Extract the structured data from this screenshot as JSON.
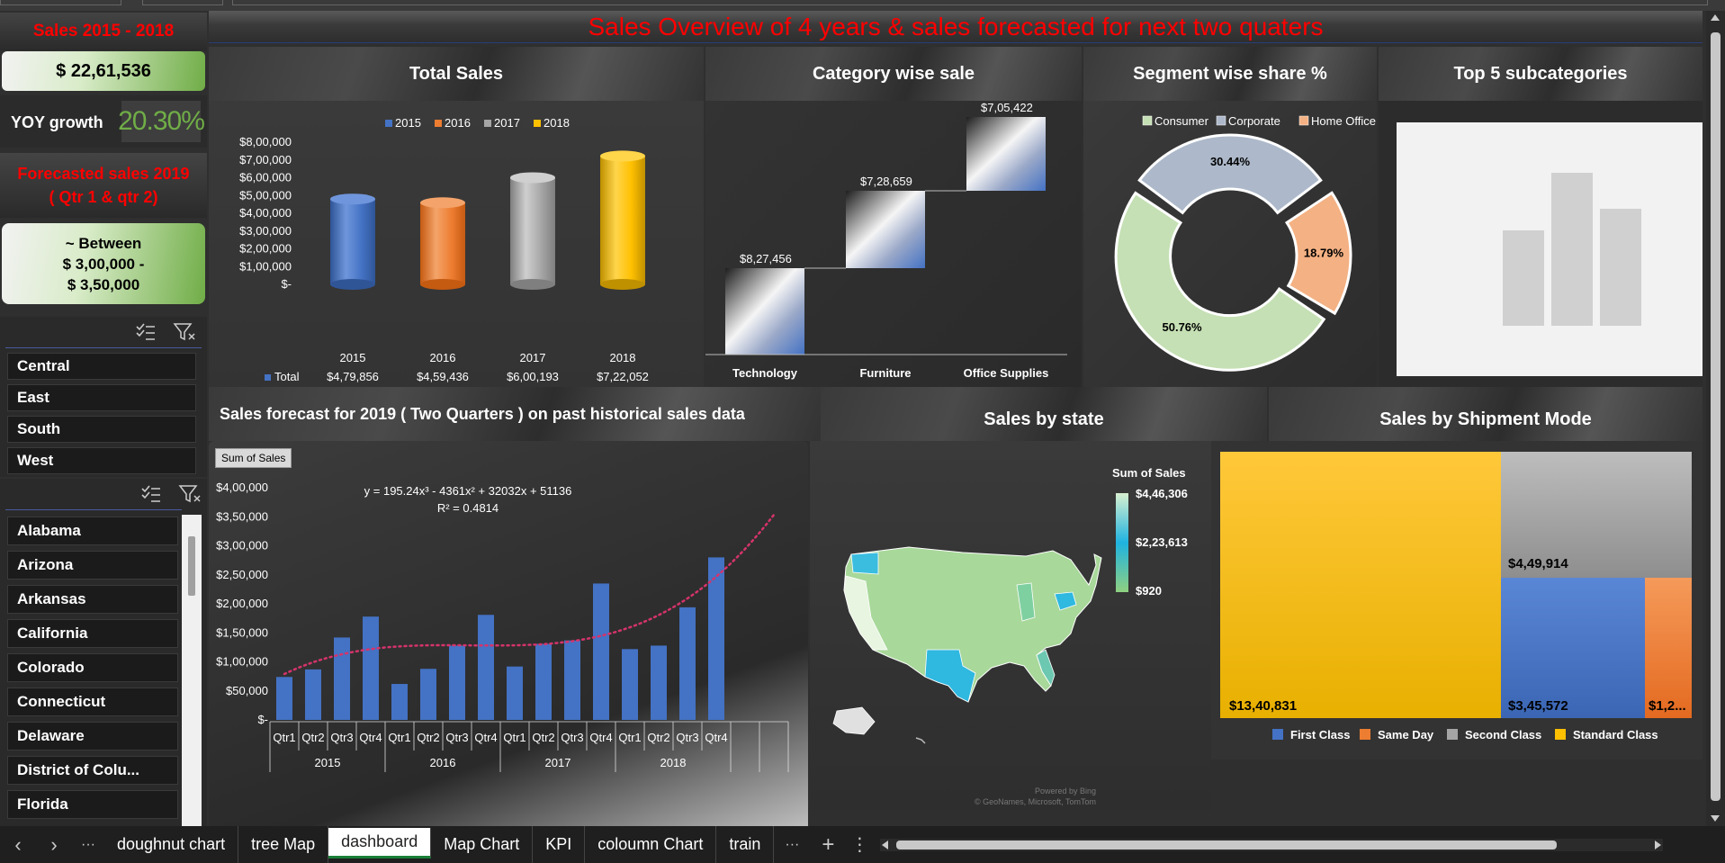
{
  "title": "Sales Overview of 4 years & sales forecasted for next two quaters",
  "kpi": {
    "range_label": "Sales 2015 - 2018",
    "total_sales": "$ 22,61,536",
    "yoy_label": "YOY growth",
    "yoy_value": "20.30%",
    "forecast_label": "Forecasted sales 2019 ( Qtr 1 & qtr 2)",
    "forecast_line1": "~ Between",
    "forecast_line2": "$ 3,00,000 -",
    "forecast_line3": "$ 3,50,000"
  },
  "region_slicer": {
    "items": [
      "Central",
      "East",
      "South",
      "West"
    ]
  },
  "state_slicer": {
    "items": [
      "Alabama",
      "Arizona",
      "Arkansas",
      "California",
      "Colorado",
      "Connecticut",
      "Delaware",
      "District of Colu...",
      "Florida"
    ]
  },
  "headers": {
    "total_sales": "Total Sales",
    "category": "Category wise sale",
    "segment": "Segment wise share %",
    "top5": "Top 5 subcategories",
    "forecast": "Sales forecast for 2019  ( Two Quarters )  on past historical sales data",
    "state": "Sales by state",
    "shipment": "Sales by Shipment Mode"
  },
  "chart_data": [
    {
      "type": "bar",
      "name_key": "total_sales",
      "categories": [
        "2015",
        "2016",
        "2017",
        "2018"
      ],
      "values": [
        479856,
        459436,
        600193,
        722052
      ],
      "value_labels": [
        "$4,79,856",
        "$4,59,436",
        "$6,00,193",
        "$7,22,052"
      ],
      "legend": [
        "2015",
        "2016",
        "2017",
        "2018"
      ],
      "colors": [
        "#4472c4",
        "#ed7d31",
        "#a5a5a5",
        "#ffc000"
      ],
      "table_row_label": "Total",
      "yticks": [
        "$8,00,000",
        "$7,00,000",
        "$6,00,000",
        "$5,00,000",
        "$4,00,000",
        "$3,00,000",
        "$2,00,000",
        "$1,00,000",
        "$-"
      ],
      "ylim": [
        0,
        800000
      ]
    },
    {
      "type": "bar",
      "name_key": "category_waterfall",
      "categories": [
        "Technology",
        "Furniture",
        "Office Supplies"
      ],
      "values": [
        827456,
        728659,
        705422
      ],
      "value_labels": [
        "$8,27,456",
        "$7,28,659",
        "$7,05,422"
      ]
    },
    {
      "type": "pie",
      "name_key": "segment_share",
      "categories": [
        "Consumer",
        "Corporate",
        "Home Office"
      ],
      "values": [
        50.76,
        30.44,
        18.79
      ],
      "value_labels": [
        "50.76%",
        "30.44%",
        "18.79%"
      ],
      "colors": [
        "#c5e0b4",
        "#adb9ca",
        "#f4b183"
      ]
    },
    {
      "type": "bar",
      "name_key": "sales_forecast",
      "badge": "Sum of Sales",
      "years": [
        "2015",
        "2016",
        "2017",
        "2018"
      ],
      "quarters": [
        "Qtr1",
        "Qtr2",
        "Qtr3",
        "Qtr4",
        "Qtr1",
        "Qtr2",
        "Qtr3",
        "Qtr4",
        "Qtr1",
        "Qtr2",
        "Qtr3",
        "Qtr4",
        "Qtr1",
        "Qtr2",
        "Qtr3",
        "Qtr4"
      ],
      "values": [
        74000,
        87000,
        142000,
        178000,
        62000,
        88000,
        128000,
        181000,
        92000,
        131000,
        137000,
        235000,
        122000,
        128000,
        194000,
        280000
      ],
      "trend_equation": "y = 195.24x³ - 4361x² + 32032x + 51136",
      "trend_r2": "R² = 0.4814",
      "yticks": [
        "$4,00,000",
        "$3,50,000",
        "$3,00,000",
        "$2,50,000",
        "$2,00,000",
        "$1,50,000",
        "$1,00,000",
        "$50,000",
        "$-"
      ],
      "ylim": [
        0,
        400000
      ]
    },
    {
      "type": "heatmap",
      "name_key": "sales_by_state",
      "legend_title": "Sum of Sales",
      "legend_values": [
        "$4,46,306",
        "$2,23,613",
        "$920"
      ],
      "attribution": [
        "Powered by Bing",
        "© GeoNames, Microsoft, TomTom"
      ]
    },
    {
      "type": "table",
      "name_key": "shipment_treemap",
      "categories": [
        "Standard Class",
        "Second Class",
        "First Class",
        "Same Day"
      ],
      "value_labels": [
        "$13,40,831",
        "$4,49,914",
        "$3,45,572",
        "$1,2..."
      ],
      "legend": [
        "First Class",
        "Same Day",
        "Second Class",
        "Standard Class"
      ],
      "colors": {
        "First Class": "#4472c4",
        "Same Day": "#ed7d31",
        "Second Class": "#a5a5a5",
        "Standard Class": "#ffc000"
      }
    }
  ],
  "tabs": [
    "doughnut chart",
    "tree Map",
    "dashboard",
    "Map Chart",
    "KPI",
    "coloumn Chart",
    "train"
  ],
  "active_tab": "dashboard",
  "nav": {
    "prev": "‹",
    "next": "›",
    "more": "···",
    "add": "+",
    "menu": "⋮"
  }
}
